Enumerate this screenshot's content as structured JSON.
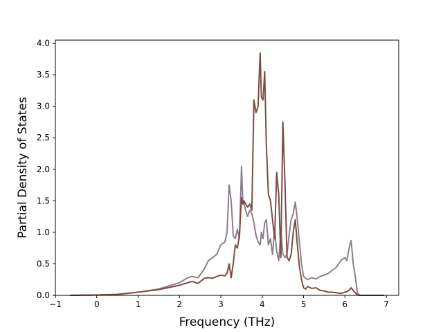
{
  "chart_data": {
    "type": "line",
    "title": "",
    "xlabel": "Frequency (THz)",
    "ylabel": "Partial Density of States",
    "xlim": [
      -1,
      7.3
    ],
    "ylim": [
      0,
      4.05
    ],
    "xticks": [
      -1,
      0,
      1,
      2,
      3,
      4,
      5,
      6,
      7
    ],
    "yticks": [
      0.0,
      0.5,
      1.0,
      1.5,
      2.0,
      2.5,
      3.0,
      3.5,
      4.0
    ],
    "xtick_labels": [
      "−1",
      "0",
      "1",
      "2",
      "3",
      "4",
      "5",
      "6",
      "7"
    ],
    "ytick_labels": [
      "0.0",
      "0.5",
      "1.0",
      "1.5",
      "2.0",
      "2.5",
      "3.0",
      "3.5",
      "4.0"
    ],
    "grid": false,
    "series": [
      {
        "color": "#8c7f8c",
        "x": [
          -0.65,
          0,
          0.5,
          1.0,
          1.5,
          2.0,
          2.2,
          2.3,
          2.45,
          2.6,
          2.7,
          2.8,
          2.9,
          3.0,
          3.1,
          3.15,
          3.2,
          3.25,
          3.3,
          3.35,
          3.4,
          3.45,
          3.5,
          3.53,
          3.56,
          3.6,
          3.65,
          3.7,
          3.75,
          3.8,
          3.85,
          3.9,
          3.95,
          3.98,
          4.02,
          4.06,
          4.1,
          4.15,
          4.2,
          4.25,
          4.3,
          4.35,
          4.4,
          4.45,
          4.5,
          4.55,
          4.6,
          4.65,
          4.7,
          4.75,
          4.8,
          4.85,
          4.9,
          4.95,
          5.0,
          5.05,
          5.1,
          5.2,
          5.3,
          5.4,
          5.5,
          5.6,
          5.7,
          5.8,
          5.9,
          6.0,
          6.05,
          6.1,
          6.15,
          6.2,
          6.25,
          6.3,
          6.35,
          6.5,
          6.95
        ],
        "y": [
          0.0,
          0.005,
          0.015,
          0.05,
          0.1,
          0.2,
          0.28,
          0.3,
          0.28,
          0.42,
          0.55,
          0.6,
          0.65,
          0.8,
          0.85,
          1.0,
          1.75,
          1.5,
          0.95,
          0.9,
          1.05,
          0.9,
          2.05,
          1.5,
          1.45,
          1.35,
          1.25,
          1.35,
          1.3,
          1.15,
          0.95,
          0.85,
          0.8,
          1.0,
          0.9,
          1.15,
          1.2,
          0.8,
          0.9,
          0.65,
          1.05,
          0.7,
          0.55,
          1.0,
          0.65,
          0.6,
          0.65,
          0.95,
          1.2,
          1.3,
          1.48,
          1.2,
          0.85,
          0.5,
          0.3,
          0.27,
          0.25,
          0.28,
          0.26,
          0.3,
          0.32,
          0.35,
          0.4,
          0.45,
          0.55,
          0.6,
          0.55,
          0.75,
          0.87,
          0.5,
          0.3,
          0.05,
          0.0,
          0.0,
          0.0
        ]
      },
      {
        "color": "#7b4c44",
        "x": [
          -0.65,
          0,
          0.5,
          1.0,
          1.5,
          2.0,
          2.2,
          2.3,
          2.45,
          2.6,
          2.7,
          2.8,
          2.9,
          3.0,
          3.1,
          3.15,
          3.2,
          3.25,
          3.3,
          3.35,
          3.4,
          3.45,
          3.5,
          3.53,
          3.56,
          3.6,
          3.65,
          3.7,
          3.75,
          3.8,
          3.85,
          3.9,
          3.95,
          3.98,
          4.02,
          4.06,
          4.1,
          4.15,
          4.2,
          4.25,
          4.3,
          4.35,
          4.4,
          4.45,
          4.5,
          4.55,
          4.6,
          4.65,
          4.7,
          4.75,
          4.8,
          4.85,
          4.9,
          4.95,
          5.0,
          5.05,
          5.1,
          5.2,
          5.3,
          5.4,
          5.5,
          5.6,
          5.7,
          5.8,
          5.9,
          6.0,
          6.05,
          6.1,
          6.15,
          6.2,
          6.25,
          6.3,
          6.35,
          6.5,
          6.95
        ],
        "y": [
          0.0,
          0.005,
          0.015,
          0.05,
          0.09,
          0.16,
          0.2,
          0.22,
          0.19,
          0.27,
          0.28,
          0.27,
          0.3,
          0.32,
          0.31,
          0.35,
          0.5,
          0.28,
          0.5,
          0.8,
          0.75,
          0.95,
          1.55,
          1.45,
          1.5,
          1.45,
          1.4,
          1.45,
          1.35,
          3.1,
          2.9,
          3.0,
          3.85,
          3.15,
          3.1,
          3.55,
          2.4,
          1.6,
          1.5,
          1.2,
          0.9,
          1.95,
          1.6,
          0.6,
          2.75,
          1.8,
          0.6,
          0.55,
          0.65,
          1.0,
          1.2,
          0.8,
          0.45,
          0.25,
          0.12,
          0.1,
          0.14,
          0.11,
          0.12,
          0.08,
          0.07,
          0.05,
          0.05,
          0.04,
          0.03,
          0.05,
          0.06,
          0.08,
          0.12,
          0.08,
          0.04,
          0.01,
          0.0,
          0.0,
          0.0
        ]
      }
    ]
  }
}
